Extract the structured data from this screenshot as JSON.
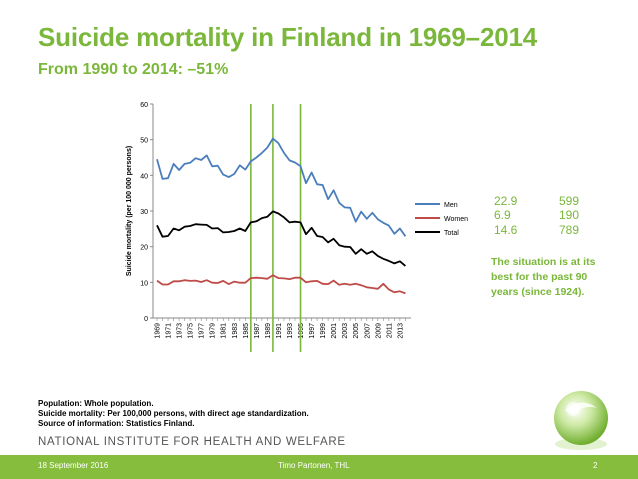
{
  "slide": {
    "title": "Suicide mortality in Finland in 1969–2014",
    "subtitle": "From 1990 to 2014: –51%",
    "note": "The situation is at its best for the past 90 years (since 1924).",
    "footnotes": [
      "Population: Whole population.",
      "Suicide mortality: Per 100,000 persons, with direct age standardization.",
      "Source of information: Statistics Finland."
    ],
    "institute": "NATIONAL INSTITUTE FOR HEALTH AND WELFARE",
    "footer": {
      "date": "18 September 2016",
      "author": "Timo Partonen, THL",
      "page": "2"
    }
  },
  "stats": [
    {
      "label": "Men",
      "rate": "22.9",
      "count": "599"
    },
    {
      "label": "Women",
      "rate": "6.9",
      "count": "190"
    },
    {
      "label": "Total",
      "rate": "14.6",
      "count": "789"
    }
  ],
  "colors": {
    "accent": "#7ab73a",
    "men": "#4a7ebb",
    "women": "#be4b48",
    "total": "#000000"
  },
  "chart_data": {
    "type": "line",
    "ylabel": "Suicide mortality (per 100 000 persons)",
    "ylim": [
      0,
      60
    ],
    "yticks": [
      0,
      10,
      20,
      30,
      40,
      50,
      60
    ],
    "x": [
      1969,
      1970,
      1971,
      1972,
      1973,
      1974,
      1975,
      1976,
      1977,
      1978,
      1979,
      1980,
      1981,
      1982,
      1983,
      1984,
      1985,
      1986,
      1987,
      1988,
      1989,
      1990,
      1991,
      1992,
      1993,
      1994,
      1995,
      1996,
      1997,
      1998,
      1999,
      2000,
      2001,
      2002,
      2003,
      2004,
      2005,
      2006,
      2007,
      2008,
      2009,
      2010,
      2011,
      2012,
      2013,
      2014
    ],
    "xtick_labels": [
      "1969",
      "1971",
      "1973",
      "1975",
      "1977",
      "1979",
      "1981",
      "1983",
      "1985",
      "1987",
      "1989",
      "1991",
      "1993",
      "1995",
      "1997",
      "1999",
      "2001",
      "2003",
      "2005",
      "2007",
      "2009",
      "2011",
      "2013"
    ],
    "vertical_markers": [
      1986,
      1990,
      1995
    ],
    "series": [
      {
        "name": "Men",
        "color": "#4a7ebb",
        "values": [
          44.5,
          39,
          39.2,
          43.2,
          41.5,
          43.2,
          43.5,
          44.8,
          44.3,
          45.6,
          42.5,
          42.7,
          40.2,
          39.5,
          40.4,
          42.8,
          41.6,
          43.9,
          45,
          46.3,
          47.8,
          50.3,
          49,
          46.3,
          44.2,
          43.6,
          42.6,
          37.8,
          40.8,
          37.5,
          37.3,
          33.3,
          35.8,
          32.3,
          31,
          30.9,
          27,
          29.8,
          27.8,
          29.5,
          27.7,
          26.7,
          25.9,
          23.6,
          25.1,
          22.9
        ]
      },
      {
        "name": "Women",
        "color": "#be4b48",
        "values": [
          10.5,
          9.4,
          9.4,
          10.3,
          10.3,
          10.6,
          10.4,
          10.5,
          10.1,
          10.6,
          9.9,
          9.8,
          10.4,
          9.5,
          10.2,
          9.9,
          9.9,
          11.2,
          11.3,
          11.2,
          11,
          12,
          11.2,
          11.1,
          10.9,
          11.3,
          11.3,
          10,
          10.3,
          10.4,
          9.6,
          9.5,
          10.5,
          9.3,
          9.6,
          9.3,
          9.6,
          9.2,
          8.6,
          8.4,
          8.2,
          9.6,
          8,
          7.2,
          7.5,
          6.9
        ]
      },
      {
        "name": "Total",
        "color": "#000000",
        "values": [
          26,
          22.8,
          23,
          25.1,
          24.6,
          25.6,
          25.8,
          26.3,
          26.2,
          26.1,
          25.1,
          25.2,
          24,
          24.1,
          24.4,
          25.1,
          24.4,
          26.8,
          27.1,
          28,
          28.4,
          29.9,
          29.3,
          28.2,
          26.8,
          27,
          26.8,
          23.5,
          25.3,
          23,
          22.7,
          21.2,
          22.2,
          20.4,
          20,
          19.9,
          18,
          19.3,
          18,
          18.7,
          17.4,
          16.6,
          16,
          15.3,
          15.9,
          14.6
        ]
      }
    ]
  }
}
